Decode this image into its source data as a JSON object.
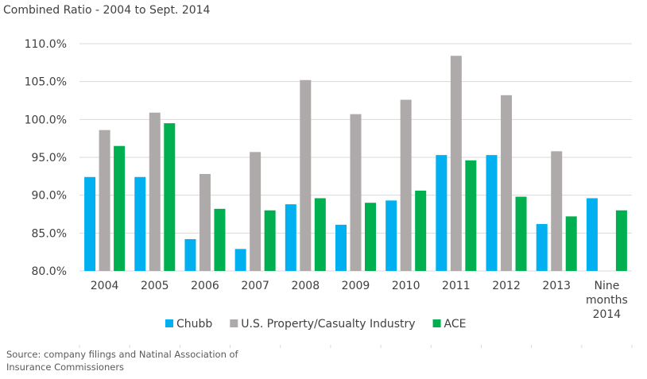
{
  "chart_data": {
    "type": "bar",
    "title": "Combined Ratio - 2004 to Sept. 2014",
    "xlabel": "",
    "ylabel": "",
    "ylim": [
      80,
      110
    ],
    "yticks": [
      "80.0%",
      "85.0%",
      "90.0%",
      "95.0%",
      "100.0%",
      "105.0%",
      "110.0%"
    ],
    "ytick_values": [
      80,
      85,
      90,
      95,
      100,
      105,
      110
    ],
    "categories": [
      "2004",
      "2005",
      "2006",
      "2007",
      "2008",
      "2009",
      "2010",
      "2011",
      "2012",
      "2013",
      "Nine months 2014"
    ],
    "category_lines": [
      [
        "2004"
      ],
      [
        "2005"
      ],
      [
        "2006"
      ],
      [
        "2007"
      ],
      [
        "2008"
      ],
      [
        "2009"
      ],
      [
        "2010"
      ],
      [
        "2011"
      ],
      [
        "2012"
      ],
      [
        "2013"
      ],
      [
        "Nine",
        "months",
        "2014"
      ]
    ],
    "series": [
      {
        "name": "Chubb",
        "color": "#00b0f0",
        "values": [
          92.4,
          92.4,
          84.2,
          82.9,
          88.8,
          86.1,
          89.3,
          95.3,
          95.3,
          86.2,
          89.6
        ]
      },
      {
        "name": "U.S. Property/Casualty Industry",
        "color": "#aeaaaa",
        "values": [
          98.6,
          100.9,
          92.8,
          95.7,
          105.2,
          100.7,
          102.6,
          108.4,
          103.2,
          95.8,
          null
        ]
      },
      {
        "name": "ACE",
        "color": "#00b050",
        "values": [
          96.5,
          99.5,
          88.2,
          88.0,
          89.6,
          89.0,
          90.6,
          94.6,
          89.8,
          87.2,
          88.0
        ]
      }
    ],
    "legend_position": "bottom",
    "grid": true
  },
  "source_note": "Source: company filings and Natinal Association of Insurance Commissioners"
}
